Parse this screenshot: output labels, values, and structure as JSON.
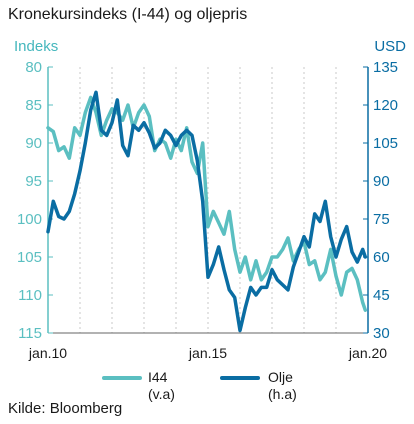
{
  "title": "Kronekursindeks (I-44) og oljepris",
  "unit_left": "Indeks",
  "unit_right": "USD",
  "source": "Kilde: Bloomberg",
  "legend": [
    {
      "label": "I44",
      "sub": "(v.a)",
      "color": "#5bbfc1"
    },
    {
      "label": "Olje",
      "sub": "(h.a)",
      "color": "#0a6da3"
    }
  ],
  "chart_data": {
    "type": "line",
    "x_ticks": [
      "jan.10",
      "jan.15",
      "jan.20"
    ],
    "x_range": [
      "2010-01",
      "2020-01"
    ],
    "left_axis": {
      "ticks": [
        80,
        85,
        90,
        95,
        100,
        105,
        110,
        115
      ],
      "range": [
        80,
        115
      ],
      "inverted": true,
      "color": "#5bbfc1"
    },
    "right_axis": {
      "ticks": [
        135,
        120,
        105,
        90,
        75,
        60,
        45,
        30
      ],
      "range": [
        30,
        135
      ],
      "color": "#0a6da3"
    },
    "grid": "vertical dashed",
    "series": [
      {
        "name": "I44",
        "axis": "left",
        "color": "#5bbfc1",
        "x": [
          "2010-01",
          "2010-03",
          "2010-05",
          "2010-07",
          "2010-09",
          "2010-11",
          "2011-01",
          "2011-03",
          "2011-05",
          "2011-07",
          "2011-09",
          "2011-11",
          "2012-01",
          "2012-03",
          "2012-05",
          "2012-07",
          "2012-09",
          "2012-11",
          "2013-01",
          "2013-03",
          "2013-05",
          "2013-07",
          "2013-09",
          "2013-11",
          "2014-01",
          "2014-03",
          "2014-05",
          "2014-07",
          "2014-09",
          "2014-11",
          "2015-01",
          "2015-03",
          "2015-05",
          "2015-07",
          "2015-09",
          "2015-11",
          "2016-01",
          "2016-03",
          "2016-05",
          "2016-07",
          "2016-09",
          "2016-11",
          "2017-01",
          "2017-03",
          "2017-05",
          "2017-07",
          "2017-09",
          "2017-11",
          "2018-01",
          "2018-03",
          "2018-05",
          "2018-07",
          "2018-09",
          "2018-11",
          "2019-01",
          "2019-03",
          "2019-05",
          "2019-07",
          "2019-09",
          "2019-11",
          "2019-12"
        ],
        "values": [
          88,
          88.5,
          91,
          90.5,
          92,
          88,
          89,
          86,
          84,
          86,
          89,
          87,
          85.5,
          86,
          87,
          85,
          88,
          86,
          85,
          86.5,
          91,
          89.5,
          90,
          92,
          89.5,
          91,
          88,
          92.5,
          94,
          90,
          101,
          99,
          100.5,
          102,
          99,
          104,
          107,
          105,
          108,
          105.5,
          108,
          107,
          105,
          105,
          104,
          102.5,
          105.5,
          104,
          103,
          106,
          105.5,
          108,
          107,
          104,
          107.5,
          110,
          107,
          106.5,
          108,
          111,
          112
        ]
      },
      {
        "name": "Olje",
        "axis": "right",
        "color": "#0a6da3",
        "x": [
          "2010-01",
          "2010-03",
          "2010-05",
          "2010-07",
          "2010-09",
          "2010-11",
          "2011-01",
          "2011-03",
          "2011-05",
          "2011-07",
          "2011-09",
          "2011-11",
          "2012-01",
          "2012-03",
          "2012-05",
          "2012-07",
          "2012-09",
          "2012-11",
          "2013-01",
          "2013-03",
          "2013-05",
          "2013-07",
          "2013-09",
          "2013-11",
          "2014-01",
          "2014-03",
          "2014-05",
          "2014-07",
          "2014-09",
          "2014-11",
          "2015-01",
          "2015-03",
          "2015-05",
          "2015-07",
          "2015-09",
          "2015-11",
          "2016-01",
          "2016-03",
          "2016-05",
          "2016-07",
          "2016-09",
          "2016-11",
          "2017-01",
          "2017-03",
          "2017-05",
          "2017-07",
          "2017-09",
          "2017-11",
          "2018-01",
          "2018-03",
          "2018-05",
          "2018-07",
          "2018-09",
          "2018-11",
          "2019-01",
          "2019-03",
          "2019-05",
          "2019-07",
          "2019-09",
          "2019-11",
          "2019-12"
        ],
        "values": [
          70,
          82,
          76,
          75,
          78,
          85,
          94,
          105,
          118,
          125,
          110,
          108,
          113,
          122,
          104,
          100,
          112,
          110,
          113,
          109,
          103,
          105,
          110,
          108,
          104,
          108,
          110,
          108,
          98,
          82,
          52,
          57,
          64,
          55,
          47,
          44,
          31,
          40,
          48,
          45,
          48,
          48,
          55,
          51,
          49,
          47,
          56,
          62,
          68,
          64,
          77,
          74,
          82,
          68,
          60,
          67,
          72,
          62,
          58,
          63,
          60
        ]
      }
    ]
  }
}
